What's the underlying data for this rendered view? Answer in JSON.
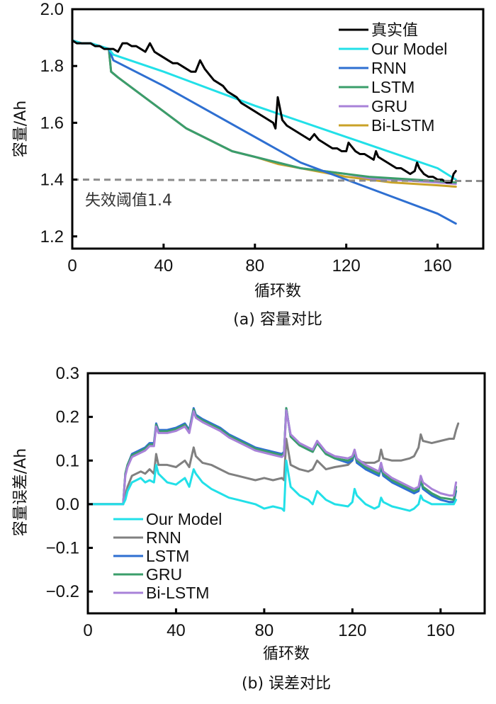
{
  "chart_data": [
    {
      "id": "a",
      "type": "line",
      "caption": "(a) 容量对比",
      "xlabel": "循环数",
      "ylabel": "容量/Ah",
      "xlim": [
        0,
        180
      ],
      "ylim": [
        1.157,
        2.0
      ],
      "xticks": [
        0,
        40,
        80,
        120,
        160
      ],
      "xtick_labels": [
        "0",
        "40",
        "80",
        "120",
        "160"
      ],
      "yticks": [
        1.2,
        1.4,
        1.6,
        1.8,
        2.0
      ],
      "ytick_labels": [
        "1.2",
        "1.4",
        "1.6",
        "1.8",
        "2.0"
      ],
      "grid": false,
      "legend_position": "top-right",
      "threshold": {
        "value": 1.4,
        "label": "失效阈值1.4",
        "color": "#8c8c8c",
        "style": "dashed"
      },
      "series": [
        {
          "name": "真实值",
          "color": "#000000",
          "x": [
            0,
            2,
            4,
            8,
            10,
            12,
            14,
            16,
            18,
            20,
            22,
            24,
            26,
            28,
            30,
            32,
            34,
            36,
            38,
            40,
            42,
            44,
            46,
            48,
            50,
            52,
            54,
            56,
            58,
            60,
            62,
            64,
            66,
            68,
            70,
            72,
            74,
            76,
            78,
            80,
            82,
            84,
            86,
            88,
            89,
            90,
            92,
            94,
            96,
            98,
            100,
            102,
            104,
            106,
            108,
            110,
            112,
            114,
            116,
            118,
            120,
            121,
            122,
            124,
            126,
            128,
            130,
            132,
            133,
            134,
            136,
            138,
            140,
            142,
            144,
            146,
            148,
            150,
            151,
            152,
            154,
            156,
            158,
            160,
            162,
            164,
            166,
            167,
            168
          ],
          "y": [
            1.89,
            1.88,
            1.88,
            1.88,
            1.87,
            1.87,
            1.86,
            1.86,
            1.86,
            1.85,
            1.88,
            1.88,
            1.87,
            1.87,
            1.86,
            1.85,
            1.88,
            1.85,
            1.84,
            1.83,
            1.82,
            1.81,
            1.81,
            1.8,
            1.79,
            1.78,
            1.78,
            1.82,
            1.79,
            1.77,
            1.75,
            1.74,
            1.73,
            1.71,
            1.7,
            1.69,
            1.67,
            1.66,
            1.65,
            1.64,
            1.63,
            1.62,
            1.61,
            1.6,
            1.58,
            1.69,
            1.61,
            1.59,
            1.58,
            1.57,
            1.56,
            1.55,
            1.54,
            1.56,
            1.54,
            1.53,
            1.52,
            1.51,
            1.51,
            1.5,
            1.5,
            1.53,
            1.52,
            1.5,
            1.49,
            1.49,
            1.48,
            1.47,
            1.5,
            1.48,
            1.47,
            1.46,
            1.45,
            1.44,
            1.44,
            1.43,
            1.42,
            1.43,
            1.46,
            1.44,
            1.42,
            1.41,
            1.41,
            1.4,
            1.4,
            1.39,
            1.39,
            1.42,
            1.43
          ]
        },
        {
          "name": "Our Model",
          "color": "#22e0e8",
          "x": [
            0,
            4,
            8,
            12,
            16,
            18,
            40,
            80,
            120,
            160,
            168
          ],
          "y": [
            1.89,
            1.88,
            1.88,
            1.87,
            1.86,
            1.84,
            1.78,
            1.66,
            1.55,
            1.44,
            1.4
          ]
        },
        {
          "name": "RNN",
          "color": "#2e6fd1",
          "x": [
            0,
            4,
            8,
            12,
            16,
            18,
            40,
            60,
            80,
            100,
            120,
            140,
            160,
            168
          ],
          "y": [
            1.89,
            1.88,
            1.88,
            1.87,
            1.86,
            1.82,
            1.73,
            1.64,
            1.55,
            1.46,
            1.4,
            1.34,
            1.28,
            1.245
          ]
        },
        {
          "name": "LSTM",
          "color": "#3a9e6a",
          "x": [
            0,
            4,
            8,
            12,
            16,
            17,
            20,
            30,
            40,
            50,
            60,
            70,
            80,
            90,
            100,
            110,
            120,
            130,
            140,
            150,
            160,
            168
          ],
          "y": [
            1.89,
            1.88,
            1.88,
            1.87,
            1.86,
            1.78,
            1.76,
            1.7,
            1.64,
            1.58,
            1.54,
            1.5,
            1.48,
            1.46,
            1.44,
            1.43,
            1.42,
            1.41,
            1.405,
            1.4,
            1.395,
            1.39
          ]
        },
        {
          "name": "GRU",
          "color": "#a882d8",
          "x": [
            0,
            4,
            8,
            12,
            16,
            17,
            20,
            30,
            40,
            50,
            60,
            70,
            80,
            90,
            100,
            110,
            120,
            130,
            140,
            150,
            160,
            168
          ],
          "y": [
            1.89,
            1.88,
            1.88,
            1.87,
            1.86,
            1.78,
            1.76,
            1.7,
            1.64,
            1.58,
            1.54,
            1.5,
            1.48,
            1.46,
            1.44,
            1.43,
            1.42,
            1.405,
            1.4,
            1.395,
            1.39,
            1.385
          ]
        },
        {
          "name": "Bi-LSTM",
          "color": "#c9a227",
          "x": [
            0,
            4,
            8,
            12,
            16,
            17,
            20,
            30,
            40,
            50,
            60,
            70,
            80,
            90,
            100,
            110,
            120,
            130,
            140,
            150,
            160,
            168
          ],
          "y": [
            1.89,
            1.88,
            1.88,
            1.87,
            1.86,
            1.78,
            1.76,
            1.7,
            1.64,
            1.58,
            1.54,
            1.5,
            1.48,
            1.455,
            1.44,
            1.425,
            1.41,
            1.4,
            1.39,
            1.385,
            1.38,
            1.375
          ]
        }
      ]
    },
    {
      "id": "b",
      "type": "line",
      "caption": "(b) 误差对比",
      "xlabel": "循环数",
      "ylabel": "容量误差/Ah",
      "xlim": [
        0,
        180
      ],
      "ylim": [
        -0.25,
        0.3
      ],
      "xticks": [
        0,
        40,
        80,
        120,
        160
      ],
      "xtick_labels": [
        "0",
        "40",
        "80",
        "120",
        "160"
      ],
      "yticks": [
        -0.2,
        -0.1,
        0.0,
        0.1,
        0.2,
        0.3
      ],
      "ytick_labels": [
        "−0.2",
        "−0.1",
        "0.0",
        "0.1",
        "0.2",
        "0.3"
      ],
      "grid": false,
      "legend_position": "bottom-left",
      "series": [
        {
          "name": "Our Model",
          "color": "#22e0e8",
          "x": [
            0,
            16,
            17,
            18,
            20,
            24,
            26,
            28,
            30,
            31,
            32,
            36,
            40,
            44,
            46,
            48,
            49,
            52,
            56,
            60,
            64,
            68,
            72,
            76,
            80,
            84,
            88,
            89,
            90,
            92,
            96,
            100,
            102,
            104,
            108,
            112,
            118,
            120,
            121,
            122,
            126,
            130,
            132,
            133,
            134,
            138,
            142,
            146,
            148,
            150,
            151,
            152,
            156,
            160,
            164,
            166,
            167
          ],
          "y": [
            0,
            0,
            0.01,
            0.03,
            0.05,
            0.06,
            0.05,
            0.055,
            0.05,
            0.09,
            0.07,
            0.05,
            0.045,
            0.06,
            0.04,
            0.08,
            0.07,
            0.05,
            0.035,
            0.025,
            0.015,
            0.01,
            0.005,
            0.0,
            -0.01,
            -0.005,
            -0.01,
            -0.015,
            0.1,
            0.04,
            0.02,
            0.01,
            0.0,
            0.03,
            0.01,
            0.0,
            -0.005,
            0.005,
            0.035,
            0.02,
            0.0,
            -0.01,
            -0.005,
            0.015,
            0.005,
            -0.005,
            -0.01,
            -0.015,
            -0.01,
            0.0,
            0.02,
            0.01,
            0.0,
            0.0,
            0.0,
            0.0,
            0.01
          ]
        },
        {
          "name": "RNN",
          "color": "#808080",
          "x": [
            0,
            16,
            17,
            18,
            20,
            24,
            26,
            28,
            30,
            31,
            32,
            36,
            40,
            44,
            46,
            48,
            49,
            52,
            56,
            60,
            64,
            68,
            72,
            76,
            80,
            84,
            88,
            89,
            90,
            92,
            96,
            100,
            102,
            104,
            108,
            112,
            118,
            120,
            121,
            122,
            126,
            130,
            132,
            133,
            134,
            138,
            142,
            146,
            148,
            150,
            151,
            152,
            156,
            160,
            164,
            166,
            167,
            168
          ],
          "y": [
            0,
            0,
            0.02,
            0.04,
            0.065,
            0.075,
            0.07,
            0.08,
            0.07,
            0.115,
            0.09,
            0.09,
            0.085,
            0.1,
            0.085,
            0.13,
            0.11,
            0.095,
            0.09,
            0.08,
            0.07,
            0.065,
            0.06,
            0.055,
            0.06,
            0.055,
            0.06,
            0.055,
            0.15,
            0.09,
            0.08,
            0.075,
            0.08,
            0.1,
            0.08,
            0.085,
            0.09,
            0.1,
            0.12,
            0.1,
            0.095,
            0.095,
            0.1,
            0.125,
            0.105,
            0.1,
            0.1,
            0.105,
            0.11,
            0.13,
            0.16,
            0.145,
            0.14,
            0.145,
            0.15,
            0.15,
            0.17,
            0.185
          ]
        },
        {
          "name": "LSTM",
          "color": "#2e6fd1",
          "x": [
            0,
            16,
            17,
            18,
            20,
            24,
            26,
            28,
            30,
            31,
            32,
            36,
            40,
            44,
            46,
            48,
            49,
            52,
            56,
            60,
            64,
            68,
            72,
            76,
            80,
            84,
            88,
            89,
            90,
            92,
            96,
            100,
            102,
            104,
            108,
            112,
            118,
            120,
            121,
            122,
            126,
            130,
            132,
            133,
            134,
            138,
            142,
            146,
            148,
            150,
            151,
            152,
            156,
            160,
            164,
            166,
            167
          ],
          "y": [
            0,
            0,
            0.07,
            0.09,
            0.115,
            0.125,
            0.13,
            0.14,
            0.14,
            0.185,
            0.17,
            0.17,
            0.175,
            0.185,
            0.17,
            0.22,
            0.205,
            0.195,
            0.185,
            0.175,
            0.16,
            0.15,
            0.14,
            0.13,
            0.125,
            0.12,
            0.115,
            0.12,
            0.22,
            0.155,
            0.135,
            0.125,
            0.12,
            0.14,
            0.115,
            0.105,
            0.095,
            0.1,
            0.12,
            0.095,
            0.08,
            0.07,
            0.065,
            0.085,
            0.065,
            0.05,
            0.04,
            0.03,
            0.025,
            0.03,
            0.055,
            0.035,
            0.02,
            0.01,
            0.005,
            0.005,
            0.03
          ]
        },
        {
          "name": "GRU",
          "color": "#3a9e6a",
          "x": [
            0,
            16,
            17,
            18,
            20,
            24,
            26,
            28,
            30,
            31,
            32,
            36,
            40,
            44,
            46,
            48,
            49,
            52,
            56,
            60,
            64,
            68,
            72,
            76,
            80,
            84,
            88,
            89,
            90,
            92,
            96,
            100,
            102,
            104,
            108,
            112,
            118,
            120,
            121,
            122,
            126,
            130,
            132,
            133,
            134,
            138,
            142,
            146,
            148,
            150,
            151,
            152,
            156,
            160,
            164,
            166,
            167
          ],
          "y": [
            0,
            0,
            0.07,
            0.09,
            0.112,
            0.122,
            0.127,
            0.137,
            0.137,
            0.182,
            0.167,
            0.167,
            0.172,
            0.182,
            0.167,
            0.217,
            0.202,
            0.192,
            0.182,
            0.172,
            0.157,
            0.147,
            0.137,
            0.127,
            0.122,
            0.117,
            0.112,
            0.117,
            0.22,
            0.155,
            0.135,
            0.125,
            0.12,
            0.14,
            0.115,
            0.105,
            0.1,
            0.105,
            0.122,
            0.1,
            0.085,
            0.075,
            0.07,
            0.09,
            0.07,
            0.055,
            0.045,
            0.035,
            0.03,
            0.035,
            0.06,
            0.04,
            0.025,
            0.015,
            0.012,
            0.01,
            0.04
          ]
        },
        {
          "name": "Bi-LSTM",
          "color": "#a882d8",
          "x": [
            0,
            16,
            17,
            18,
            20,
            24,
            26,
            28,
            30,
            31,
            32,
            36,
            40,
            44,
            46,
            48,
            49,
            52,
            56,
            60,
            64,
            68,
            72,
            76,
            80,
            84,
            88,
            89,
            90,
            92,
            96,
            100,
            102,
            104,
            108,
            112,
            118,
            120,
            121,
            122,
            126,
            130,
            132,
            133,
            134,
            138,
            142,
            146,
            148,
            150,
            151,
            152,
            156,
            160,
            164,
            166,
            167
          ],
          "y": [
            0,
            0,
            0.065,
            0.085,
            0.108,
            0.118,
            0.123,
            0.133,
            0.133,
            0.178,
            0.163,
            0.163,
            0.168,
            0.178,
            0.163,
            0.213,
            0.198,
            0.188,
            0.178,
            0.168,
            0.153,
            0.143,
            0.133,
            0.123,
            0.118,
            0.113,
            0.108,
            0.113,
            0.215,
            0.16,
            0.14,
            0.13,
            0.125,
            0.145,
            0.12,
            0.11,
            0.105,
            0.11,
            0.125,
            0.105,
            0.09,
            0.08,
            0.075,
            0.095,
            0.075,
            0.06,
            0.05,
            0.04,
            0.035,
            0.04,
            0.065,
            0.05,
            0.035,
            0.025,
            0.02,
            0.02,
            0.05
          ]
        }
      ]
    }
  ]
}
